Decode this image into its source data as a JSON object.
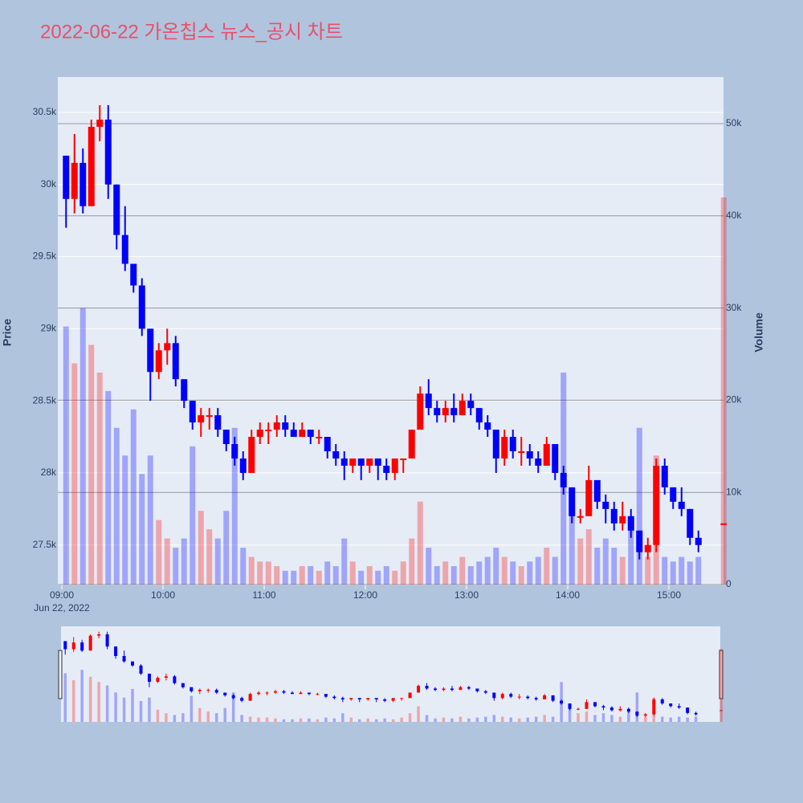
{
  "chart_data": {
    "type": "candlestick",
    "title": "2022-06-22 가온칩스 뉴스_공시 차트",
    "y_title": "Price",
    "y2_title": "Volume",
    "increasing_color": "#ff0000",
    "decreasing_color": "#0000ff",
    "x": [
      "09:00",
      "09:05",
      "09:10",
      "09:15",
      "09:20",
      "09:25",
      "09:30",
      "09:35",
      "09:40",
      "09:45",
      "09:50",
      "09:55",
      "10:00",
      "10:05",
      "10:10",
      "10:15",
      "10:20",
      "10:25",
      "10:30",
      "10:35",
      "10:40",
      "10:45",
      "10:50",
      "10:55",
      "11:00",
      "11:05",
      "11:10",
      "11:15",
      "11:20",
      "11:25",
      "11:30",
      "11:35",
      "11:40",
      "11:45",
      "11:50",
      "11:55",
      "12:00",
      "12:05",
      "12:10",
      "12:15",
      "12:20",
      "12:25",
      "12:30",
      "12:35",
      "12:40",
      "12:45",
      "12:50",
      "12:55",
      "13:00",
      "13:05",
      "13:10",
      "13:15",
      "13:20",
      "13:25",
      "13:30",
      "13:35",
      "13:40",
      "13:45",
      "13:50",
      "13:55",
      "14:00",
      "14:05",
      "14:10",
      "14:15",
      "14:20",
      "14:25",
      "14:30",
      "14:35",
      "14:40",
      "14:45",
      "14:50",
      "14:55",
      "15:00",
      "15:05",
      "15:10",
      "15:15",
      "15:30"
    ],
    "open": [
      30200,
      29900,
      30150,
      29850,
      30400,
      30450,
      30000,
      29650,
      29450,
      29300,
      29000,
      28700,
      28850,
      28900,
      28650,
      28500,
      28350,
      28400,
      28400,
      28300,
      28200,
      28100,
      28000,
      28250,
      28300,
      28300,
      28350,
      28300,
      28250,
      28300,
      28250,
      28250,
      28150,
      28100,
      28050,
      28100,
      28050,
      28100,
      28050,
      28000,
      28100,
      28100,
      28300,
      28550,
      28450,
      28400,
      28450,
      28400,
      28500,
      28450,
      28350,
      28300,
      28100,
      28250,
      28150,
      28150,
      28100,
      28050,
      28200,
      28000,
      27900,
      27700,
      27700,
      27950,
      27800,
      27750,
      27650,
      27700,
      27600,
      27450,
      27500,
      28050,
      27900,
      27800,
      27750,
      27550,
      27650
    ],
    "high": [
      30200,
      30350,
      30250,
      30450,
      30550,
      30550,
      30000,
      29850,
      29450,
      29350,
      29000,
      28900,
      29000,
      28950,
      28650,
      28500,
      28450,
      28450,
      28450,
      28300,
      28250,
      28150,
      28300,
      28350,
      28350,
      28400,
      28400,
      28350,
      28350,
      28300,
      28300,
      28250,
      28200,
      28150,
      28100,
      28100,
      28100,
      28100,
      28100,
      28100,
      28100,
      28300,
      28600,
      28650,
      28500,
      28500,
      28550,
      28550,
      28550,
      28450,
      28400,
      28300,
      28300,
      28300,
      28250,
      28200,
      28150,
      28250,
      28200,
      28050,
      27900,
      27750,
      28050,
      27950,
      27850,
      27800,
      27800,
      27750,
      27600,
      27550,
      28100,
      28100,
      27900,
      27900,
      27750,
      27600,
      27650
    ],
    "low": [
      29700,
      29800,
      29800,
      29850,
      30300,
      29900,
      29550,
      29400,
      29250,
      28950,
      28500,
      28650,
      28750,
      28600,
      28450,
      28300,
      28250,
      28300,
      28250,
      28150,
      28050,
      27950,
      28000,
      28200,
      28200,
      28250,
      28250,
      28250,
      28250,
      28200,
      28200,
      28100,
      28050,
      27950,
      28000,
      27950,
      28000,
      27950,
      27950,
      27950,
      28000,
      28100,
      28300,
      28400,
      28350,
      28350,
      28350,
      28400,
      28400,
      28300,
      28250,
      28000,
      28050,
      28100,
      28050,
      28050,
      28000,
      28050,
      27950,
      27850,
      27650,
      27650,
      27700,
      27750,
      27650,
      27600,
      27600,
      27550,
      27400,
      27400,
      27450,
      27850,
      27750,
      27700,
      27500,
      27450,
      27650
    ],
    "close": [
      29900,
      30150,
      29850,
      30400,
      30450,
      30000,
      29650,
      29450,
      29300,
      29000,
      28700,
      28850,
      28900,
      28650,
      28500,
      28350,
      28400,
      28400,
      28300,
      28200,
      28100,
      28000,
      28250,
      28300,
      28300,
      28350,
      28300,
      28250,
      28300,
      28250,
      28250,
      28150,
      28100,
      28050,
      28100,
      28050,
      28100,
      28050,
      28000,
      28100,
      28100,
      28300,
      28550,
      28450,
      28400,
      28450,
      28400,
      28500,
      28450,
      28350,
      28300,
      28100,
      28250,
      28150,
      28150,
      28100,
      28050,
      28200,
      28000,
      27900,
      27700,
      27700,
      27950,
      27800,
      27750,
      27650,
      27700,
      27600,
      27450,
      27500,
      28050,
      27900,
      27800,
      27750,
      27550,
      27500,
      27650
    ],
    "volume": [
      28000,
      24000,
      30000,
      26000,
      23000,
      21000,
      17000,
      14000,
      19000,
      12000,
      14000,
      7000,
      5000,
      4000,
      5000,
      15000,
      8000,
      6000,
      5000,
      8000,
      17000,
      4000,
      3000,
      2500,
      2500,
      2000,
      1500,
      1500,
      2000,
      2000,
      1500,
      2500,
      2000,
      5000,
      2500,
      1500,
      2000,
      1500,
      2000,
      1500,
      2500,
      5000,
      9000,
      4000,
      2000,
      2500,
      2000,
      3000,
      2000,
      2500,
      3000,
      4000,
      3000,
      2500,
      2000,
      2500,
      3000,
      4000,
      3000,
      23000,
      8000,
      5000,
      6000,
      4000,
      5000,
      4000,
      3000,
      6000,
      17000,
      3000,
      14000,
      3000,
      2500,
      3000,
      2500,
      3000,
      42000
    ],
    "ylim": [
      27220,
      30745
    ],
    "yticks": [
      {
        "value": 27500,
        "label": "27.5k"
      },
      {
        "value": 28000,
        "label": "28k"
      },
      {
        "value": 28500,
        "label": "28.5k"
      },
      {
        "value": 29000,
        "label": "29k"
      },
      {
        "value": 29500,
        "label": "29.5k"
      },
      {
        "value": 30000,
        "label": "30k"
      },
      {
        "value": 30500,
        "label": "30.5k"
      }
    ],
    "y2lim": [
      0,
      55050
    ],
    "y2ticks": [
      0,
      {
        "value": 10000,
        "label": "10k"
      },
      {
        "value": 20000,
        "label": "20k"
      },
      {
        "value": 30000,
        "label": "30k"
      },
      {
        "value": 40000,
        "label": "40k"
      },
      {
        "value": 50000,
        "label": "50k"
      }
    ],
    "xticks": [
      "09:00",
      "10:00",
      "11:00",
      "12:00",
      "13:00",
      "14:00",
      "15:00"
    ],
    "x_date_label": "Jun 22, 2022"
  }
}
